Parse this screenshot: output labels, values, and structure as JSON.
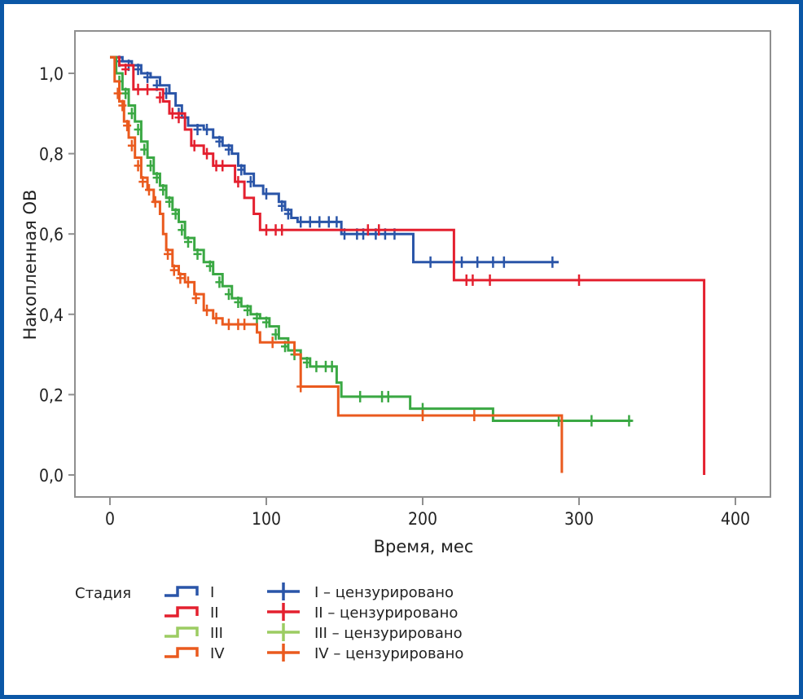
{
  "chart_data": {
    "type": "line",
    "subtype": "kaplan-meier-step",
    "title": "",
    "xlabel": "Время, мес",
    "ylabel": "Накопленная ОВ",
    "xlim": [
      -10,
      420
    ],
    "ylim": [
      -0.06,
      1.1
    ],
    "x_ticks": [
      0,
      100,
      200,
      300,
      400
    ],
    "x_tick_labels": [
      "0",
      "100",
      "200",
      "300",
      "400"
    ],
    "y_ticks": [
      0.0,
      0.2,
      0.4,
      0.6,
      0.8,
      1.0
    ],
    "y_tick_labels": [
      "0,0",
      "0,2",
      "0,4",
      "0,6",
      "0,8",
      "1,0"
    ],
    "grid": false,
    "legend": {
      "placement": "bottom-left",
      "title": "Стадия",
      "line_entries": [
        "I",
        "II",
        "III",
        "IV"
      ],
      "censor_entries": [
        "I – цензурировано",
        "II – цензурировано",
        "III – цензурировано",
        "IV – цензурировано"
      ]
    },
    "series": [
      {
        "name": "I",
        "color": "#2a55a8",
        "steps": [
          [
            0,
            1.04
          ],
          [
            8,
            1.03
          ],
          [
            14,
            1.02
          ],
          [
            20,
            1.0
          ],
          [
            26,
            0.99
          ],
          [
            32,
            0.97
          ],
          [
            38,
            0.95
          ],
          [
            42,
            0.92
          ],
          [
            46,
            0.89
          ],
          [
            50,
            0.87
          ],
          [
            60,
            0.86
          ],
          [
            66,
            0.84
          ],
          [
            72,
            0.82
          ],
          [
            78,
            0.8
          ],
          [
            82,
            0.77
          ],
          [
            86,
            0.75
          ],
          [
            92,
            0.72
          ],
          [
            98,
            0.7
          ],
          [
            108,
            0.68
          ],
          [
            112,
            0.66
          ],
          [
            116,
            0.64
          ],
          [
            120,
            0.63
          ],
          [
            148,
            0.6
          ],
          [
            194,
            0.53
          ],
          [
            287,
            0.53
          ]
        ],
        "censored": [
          [
            6,
            1.03
          ],
          [
            12,
            1.02
          ],
          [
            18,
            1.01
          ],
          [
            24,
            0.99
          ],
          [
            30,
            0.97
          ],
          [
            36,
            0.95
          ],
          [
            44,
            0.9
          ],
          [
            56,
            0.86
          ],
          [
            62,
            0.86
          ],
          [
            70,
            0.83
          ],
          [
            76,
            0.81
          ],
          [
            84,
            0.76
          ],
          [
            90,
            0.73
          ],
          [
            100,
            0.7
          ],
          [
            110,
            0.67
          ],
          [
            114,
            0.65
          ],
          [
            122,
            0.63
          ],
          [
            128,
            0.63
          ],
          [
            134,
            0.63
          ],
          [
            140,
            0.63
          ],
          [
            145,
            0.63
          ],
          [
            150,
            0.6
          ],
          [
            158,
            0.6
          ],
          [
            162,
            0.6
          ],
          [
            170,
            0.6
          ],
          [
            176,
            0.6
          ],
          [
            182,
            0.6
          ],
          [
            205,
            0.53
          ],
          [
            225,
            0.53
          ],
          [
            235,
            0.53
          ],
          [
            245,
            0.53
          ],
          [
            252,
            0.53
          ],
          [
            283,
            0.53
          ]
        ]
      },
      {
        "name": "II",
        "color": "#e4202f",
        "steps": [
          [
            0,
            1.04
          ],
          [
            6,
            1.02
          ],
          [
            15,
            0.96
          ],
          [
            28,
            0.96
          ],
          [
            34,
            0.93
          ],
          [
            38,
            0.9
          ],
          [
            48,
            0.86
          ],
          [
            52,
            0.82
          ],
          [
            60,
            0.8
          ],
          [
            66,
            0.77
          ],
          [
            80,
            0.73
          ],
          [
            86,
            0.69
          ],
          [
            92,
            0.65
          ],
          [
            96,
            0.61
          ],
          [
            220,
            0.485
          ],
          [
            380,
            0.485
          ],
          [
            380,
            0.0
          ]
        ],
        "censored": [
          [
            10,
            1.01
          ],
          [
            18,
            0.96
          ],
          [
            24,
            0.96
          ],
          [
            32,
            0.94
          ],
          [
            40,
            0.9
          ],
          [
            44,
            0.89
          ],
          [
            54,
            0.82
          ],
          [
            62,
            0.8
          ],
          [
            68,
            0.77
          ],
          [
            72,
            0.77
          ],
          [
            82,
            0.73
          ],
          [
            100,
            0.61
          ],
          [
            106,
            0.61
          ],
          [
            110,
            0.61
          ],
          [
            165,
            0.61
          ],
          [
            172,
            0.61
          ],
          [
            243,
            0.485
          ],
          [
            228,
            0.485
          ],
          [
            232,
            0.485
          ],
          [
            300,
            0.485
          ]
        ]
      },
      {
        "name": "III",
        "color": "#3aa843",
        "steps": [
          [
            0,
            1.04
          ],
          [
            4,
            1.0
          ],
          [
            8,
            0.96
          ],
          [
            12,
            0.92
          ],
          [
            16,
            0.88
          ],
          [
            20,
            0.83
          ],
          [
            24,
            0.79
          ],
          [
            28,
            0.75
          ],
          [
            32,
            0.72
          ],
          [
            36,
            0.69
          ],
          [
            40,
            0.66
          ],
          [
            44,
            0.63
          ],
          [
            48,
            0.59
          ],
          [
            54,
            0.56
          ],
          [
            60,
            0.53
          ],
          [
            66,
            0.5
          ],
          [
            72,
            0.47
          ],
          [
            78,
            0.44
          ],
          [
            84,
            0.42
          ],
          [
            90,
            0.4
          ],
          [
            96,
            0.39
          ],
          [
            102,
            0.37
          ],
          [
            108,
            0.34
          ],
          [
            114,
            0.31
          ],
          [
            122,
            0.29
          ],
          [
            128,
            0.27
          ],
          [
            145,
            0.23
          ],
          [
            148,
            0.195
          ],
          [
            192,
            0.195
          ],
          [
            192,
            0.165
          ],
          [
            245,
            0.165
          ],
          [
            245,
            0.135
          ],
          [
            334,
            0.135
          ]
        ],
        "censored": [
          [
            6,
            0.98
          ],
          [
            10,
            0.95
          ],
          [
            14,
            0.9
          ],
          [
            18,
            0.86
          ],
          [
            22,
            0.81
          ],
          [
            26,
            0.77
          ],
          [
            30,
            0.74
          ],
          [
            34,
            0.71
          ],
          [
            38,
            0.68
          ],
          [
            42,
            0.65
          ],
          [
            46,
            0.61
          ],
          [
            50,
            0.58
          ],
          [
            56,
            0.55
          ],
          [
            64,
            0.52
          ],
          [
            70,
            0.48
          ],
          [
            76,
            0.45
          ],
          [
            82,
            0.43
          ],
          [
            88,
            0.41
          ],
          [
            94,
            0.39
          ],
          [
            100,
            0.38
          ],
          [
            106,
            0.35
          ],
          [
            112,
            0.32
          ],
          [
            118,
            0.3
          ],
          [
            126,
            0.28
          ],
          [
            132,
            0.27
          ],
          [
            138,
            0.27
          ],
          [
            142,
            0.27
          ],
          [
            160,
            0.195
          ],
          [
            174,
            0.195
          ],
          [
            178,
            0.195
          ],
          [
            200,
            0.165
          ],
          [
            287,
            0.135
          ],
          [
            308,
            0.135
          ],
          [
            332,
            0.135
          ]
        ]
      },
      {
        "name": "IV",
        "color": "#ea5a1e",
        "steps": [
          [
            0,
            1.04
          ],
          [
            3,
            0.98
          ],
          [
            6,
            0.93
          ],
          [
            9,
            0.88
          ],
          [
            12,
            0.84
          ],
          [
            16,
            0.79
          ],
          [
            20,
            0.74
          ],
          [
            24,
            0.71
          ],
          [
            28,
            0.68
          ],
          [
            32,
            0.65
          ],
          [
            34,
            0.6
          ],
          [
            36,
            0.56
          ],
          [
            40,
            0.52
          ],
          [
            44,
            0.5
          ],
          [
            48,
            0.48
          ],
          [
            54,
            0.45
          ],
          [
            60,
            0.41
          ],
          [
            66,
            0.39
          ],
          [
            72,
            0.375
          ],
          [
            94,
            0.355
          ],
          [
            96,
            0.33
          ],
          [
            118,
            0.33
          ],
          [
            118,
            0.3
          ],
          [
            122,
            0.22
          ],
          [
            146,
            0.22
          ],
          [
            146,
            0.148
          ],
          [
            289,
            0.148
          ],
          [
            289,
            0.005
          ]
        ],
        "censored": [
          [
            5,
            0.95
          ],
          [
            8,
            0.92
          ],
          [
            11,
            0.87
          ],
          [
            14,
            0.82
          ],
          [
            18,
            0.77
          ],
          [
            21,
            0.73
          ],
          [
            25,
            0.71
          ],
          [
            29,
            0.68
          ],
          [
            37,
            0.55
          ],
          [
            41,
            0.51
          ],
          [
            45,
            0.49
          ],
          [
            50,
            0.48
          ],
          [
            55,
            0.44
          ],
          [
            62,
            0.41
          ],
          [
            68,
            0.39
          ],
          [
            76,
            0.375
          ],
          [
            82,
            0.375
          ],
          [
            86,
            0.375
          ],
          [
            104,
            0.33
          ],
          [
            122,
            0.22
          ],
          [
            200,
            0.148
          ],
          [
            233,
            0.148
          ]
        ]
      }
    ]
  }
}
